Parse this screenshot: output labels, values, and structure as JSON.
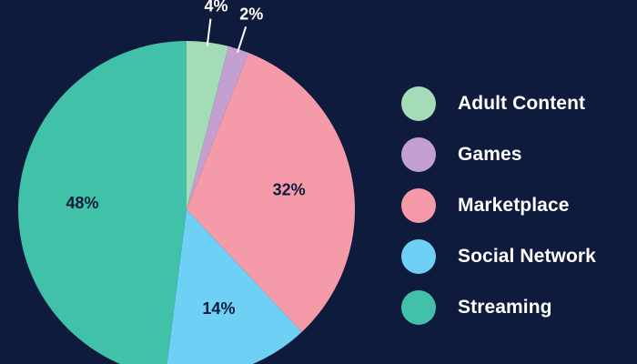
{
  "chart_data": {
    "type": "pie",
    "title": "",
    "slices": [
      {
        "label": "Adult Content",
        "value": 4,
        "value_label": "4%",
        "color": "#a3dcb7",
        "label_position": "outside"
      },
      {
        "label": "Games",
        "value": 2,
        "value_label": "2%",
        "color": "#c3a0cf",
        "label_position": "outside"
      },
      {
        "label": "Marketplace",
        "value": 32,
        "value_label": "32%",
        "color": "#f59aa8",
        "label_position": "inside"
      },
      {
        "label": "Social Network",
        "value": 14,
        "value_label": "14%",
        "color": "#6fd0f6",
        "label_position": "inside"
      },
      {
        "label": "Streaming",
        "value": 48,
        "value_label": "48%",
        "color": "#42c1a9",
        "label_position": "inside"
      }
    ],
    "start_angle": "12 o'clock",
    "direction": "clockwise",
    "legend_position": "right",
    "background_color": "#0f1b3d",
    "text_color": "#ffffff",
    "data_label_inside_color": "#0f1b3d"
  }
}
